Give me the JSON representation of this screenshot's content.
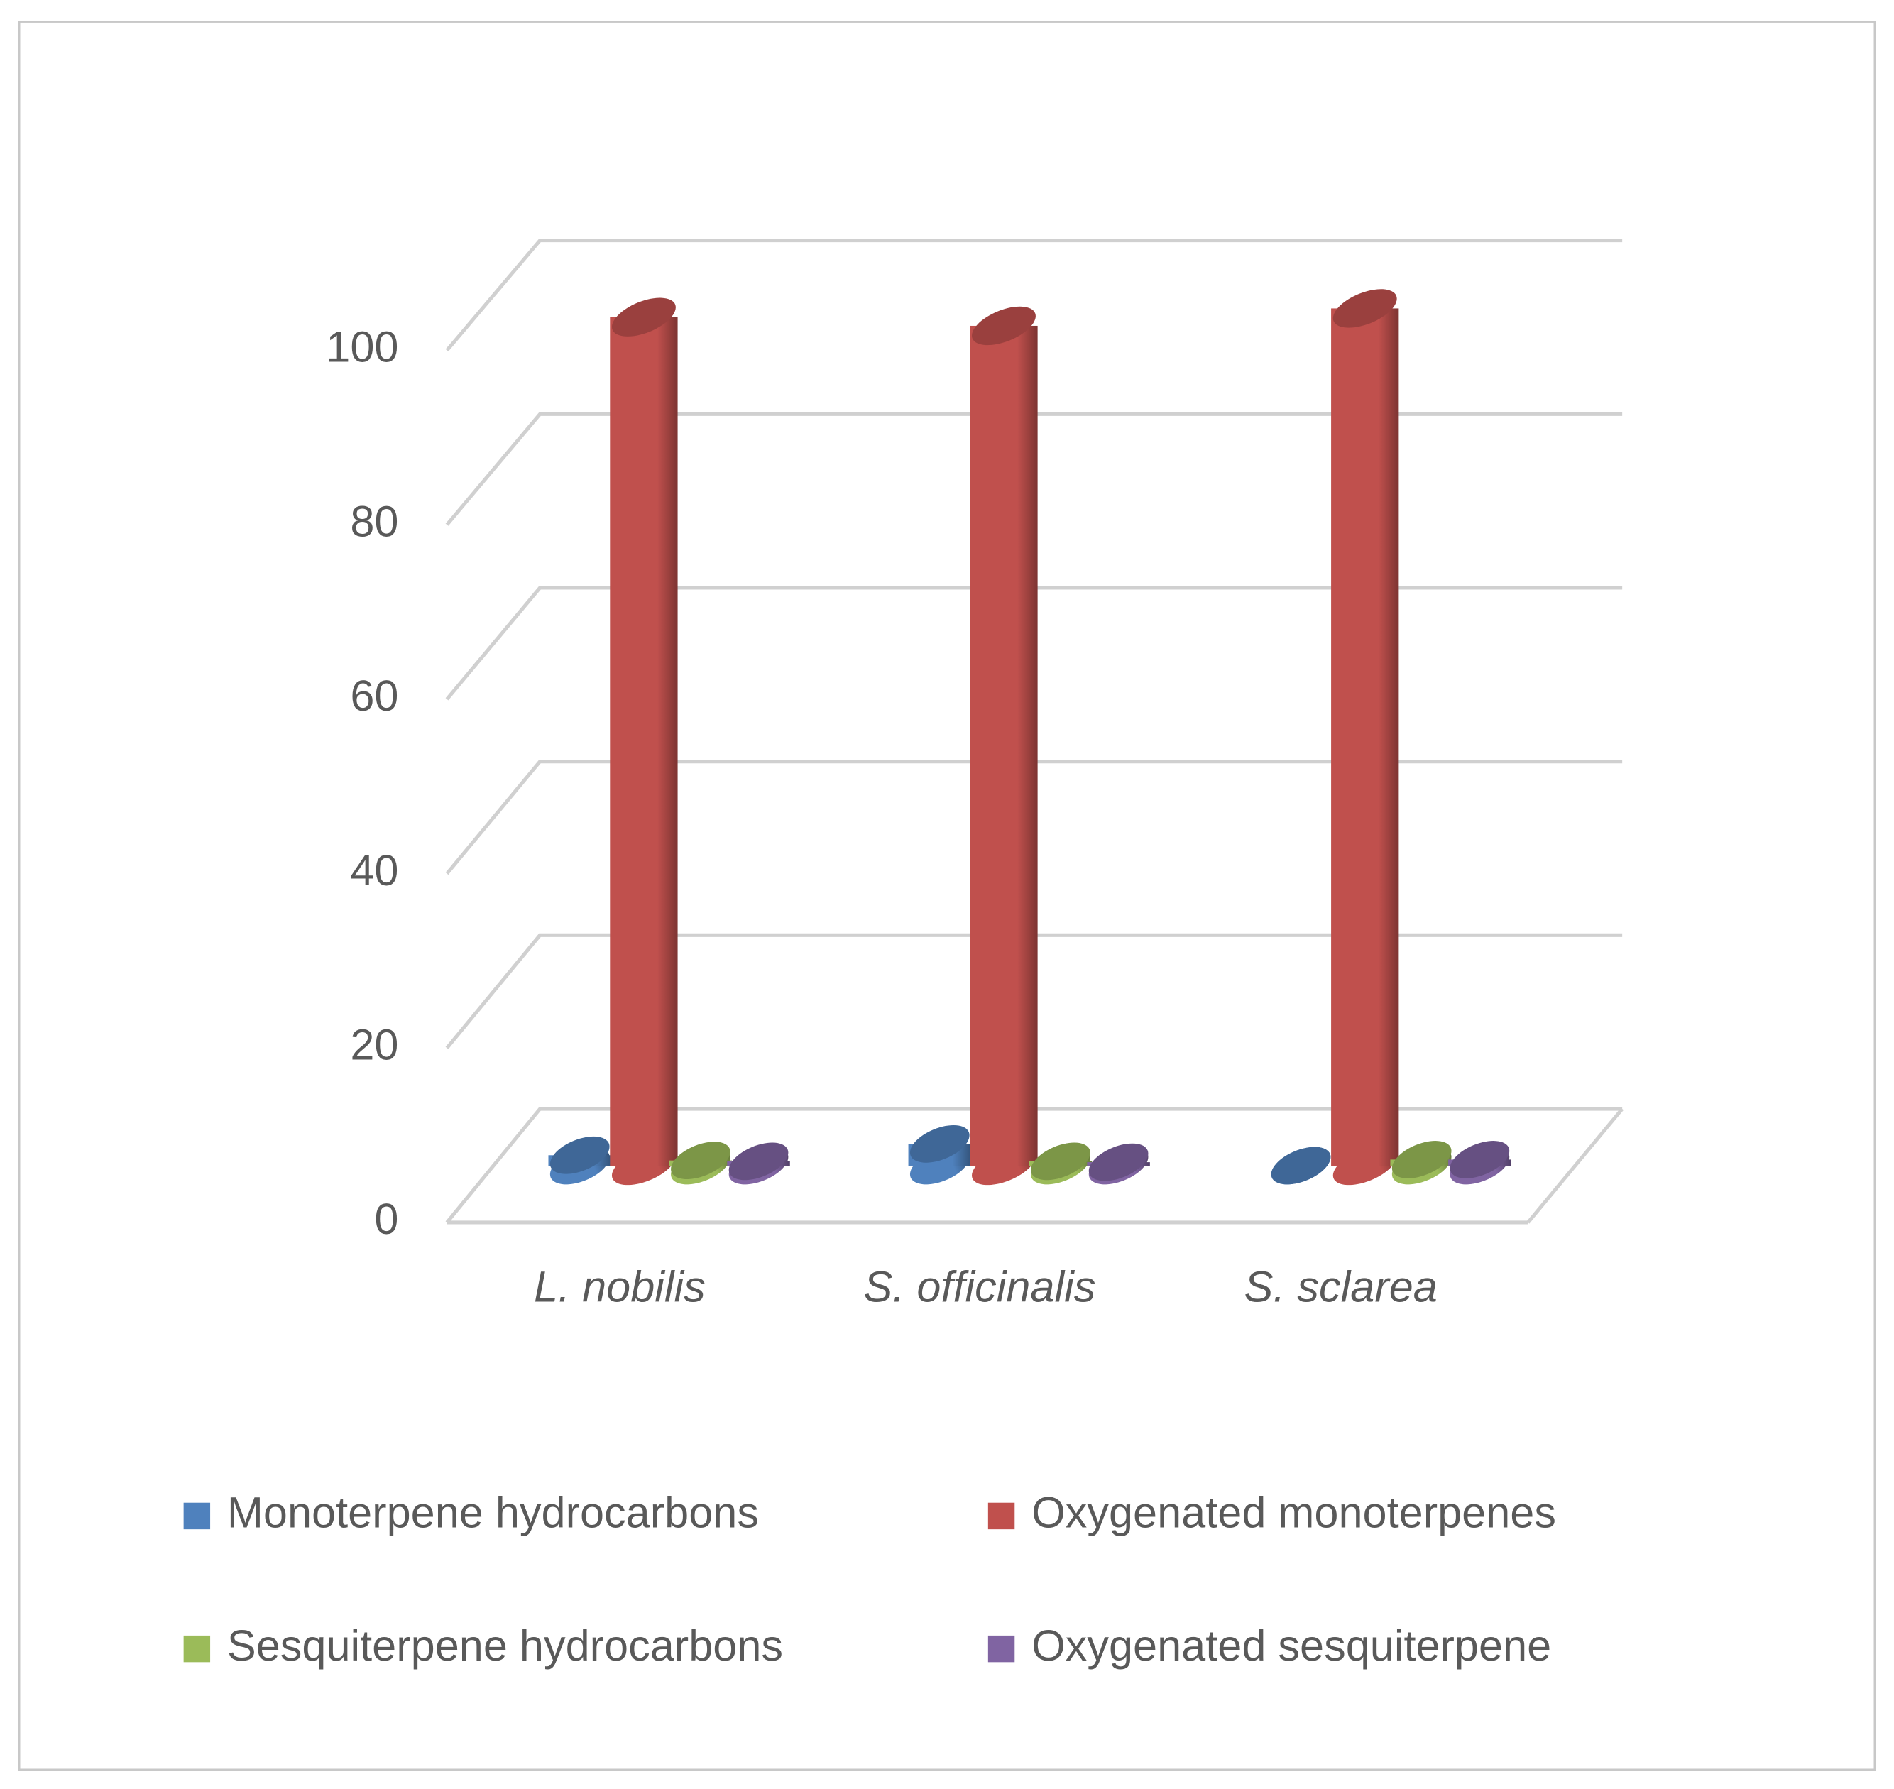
{
  "chart_data": {
    "type": "cylinder3d",
    "categories": [
      "L. nobilis",
      "S. officinalis",
      "S. sclarea"
    ],
    "series": [
      {
        "name": "Monoterpene hydrocarbons",
        "color": "#4f81bd",
        "values": [
          1.2,
          2.5,
          0
        ]
      },
      {
        "name": "Oxygenated monoterpenes",
        "color": "#c0504d",
        "values": [
          97.5,
          96.5,
          98.5
        ]
      },
      {
        "name": "Sesquiterpene hydrocarbons",
        "color": "#9bbb59",
        "values": [
          0.6,
          0.5,
          0.7
        ]
      },
      {
        "name": "Oxygenated sesquiterpene",
        "color": "#8064a2",
        "values": [
          0.5,
          0.4,
          0.7
        ]
      }
    ],
    "ylim": [
      0,
      100
    ],
    "yticks": [
      0,
      20,
      40,
      60,
      80,
      100
    ],
    "grid": true,
    "legend": "bottom"
  }
}
